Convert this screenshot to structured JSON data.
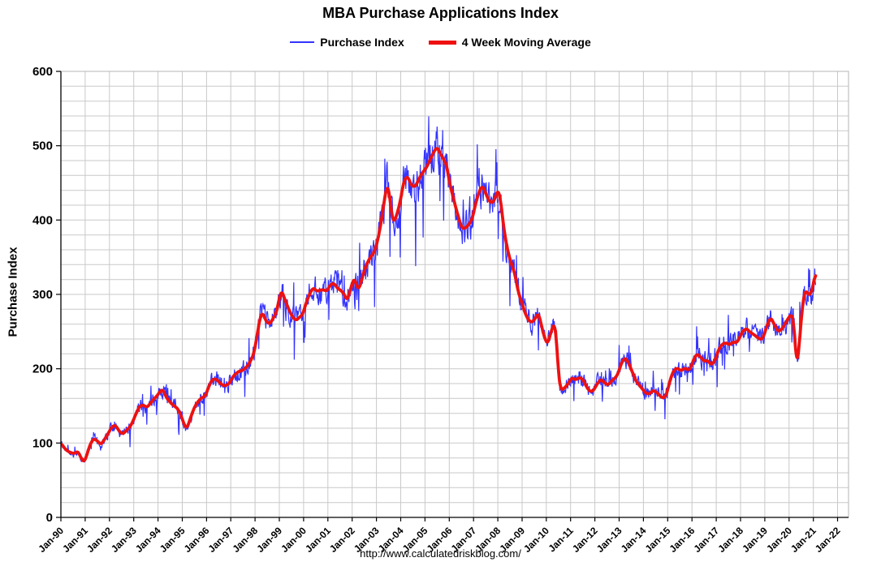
{
  "page": {
    "source_url": "http://www.calculatedriskblog.com/"
  },
  "chart_data": {
    "type": "line",
    "title": "MBA Purchase Applications Index",
    "ylabel": "Purchase Index",
    "xlabel": "",
    "ylim": [
      0,
      600
    ],
    "xlim": [
      1990,
      2022.45
    ],
    "y_major_step": 100,
    "y_minor_step": 20,
    "grid": true,
    "grid_color": "#c9c9c9",
    "legend_position": "top",
    "x_tick_start": 1990,
    "x_tick_labels": [
      "Jan-90",
      "Jan-91",
      "Jan-92",
      "Jan-93",
      "Jan-94",
      "Jan-95",
      "Jan-96",
      "Jan-97",
      "Jan-98",
      "Jan-99",
      "Jan-00",
      "Jan-01",
      "Jan-02",
      "Jan-03",
      "Jan-04",
      "Jan-05",
      "Jan-06",
      "Jan-07",
      "Jan-08",
      "Jan-09",
      "Jan-10",
      "Jan-11",
      "Jan-12",
      "Jan-13",
      "Jan-14",
      "Jan-15",
      "Jan-16",
      "Jan-17",
      "Jan-18",
      "Jan-19",
      "Jan-20",
      "Jan-21",
      "Jan-22"
    ],
    "series": [
      {
        "name": "Purchase Index",
        "color": "#3333ff",
        "line_width": 1.2,
        "derive": "noisy_from_moving_average",
        "noise_seed": 11,
        "noise_base": 0.05,
        "spike_down_prob": 0.035,
        "spike_up_prob": 0.035,
        "spike_size": 0.12
      },
      {
        "name": "4 Week Moving Average",
        "color": "#ee1111",
        "line_width": 3.8,
        "points": [
          [
            1990.0,
            100
          ],
          [
            1990.2,
            91
          ],
          [
            1990.4,
            87
          ],
          [
            1990.55,
            86
          ],
          [
            1990.7,
            89
          ],
          [
            1990.85,
            79
          ],
          [
            1990.95,
            74
          ],
          [
            1991.05,
            82
          ],
          [
            1991.2,
            98
          ],
          [
            1991.35,
            106
          ],
          [
            1991.5,
            103
          ],
          [
            1991.65,
            98
          ],
          [
            1991.8,
            105
          ],
          [
            1991.95,
            113
          ],
          [
            1992.1,
            122
          ],
          [
            1992.25,
            124
          ],
          [
            1992.4,
            116
          ],
          [
            1992.55,
            112
          ],
          [
            1992.7,
            117
          ],
          [
            1992.85,
            122
          ],
          [
            1992.95,
            128
          ],
          [
            1993.1,
            140
          ],
          [
            1993.25,
            150
          ],
          [
            1993.4,
            151
          ],
          [
            1993.55,
            148
          ],
          [
            1993.7,
            154
          ],
          [
            1993.85,
            160
          ],
          [
            1993.95,
            163
          ],
          [
            1994.1,
            170
          ],
          [
            1994.2,
            172
          ],
          [
            1994.35,
            161
          ],
          [
            1994.5,
            155
          ],
          [
            1994.65,
            150
          ],
          [
            1994.8,
            147
          ],
          [
            1994.95,
            137
          ],
          [
            1995.1,
            123
          ],
          [
            1995.2,
            120
          ],
          [
            1995.35,
            135
          ],
          [
            1995.5,
            148
          ],
          [
            1995.65,
            156
          ],
          [
            1995.8,
            161
          ],
          [
            1995.95,
            163
          ],
          [
            1996.1,
            177
          ],
          [
            1996.25,
            186
          ],
          [
            1996.4,
            186
          ],
          [
            1996.55,
            181
          ],
          [
            1996.7,
            177
          ],
          [
            1996.85,
            178
          ],
          [
            1996.95,
            181
          ],
          [
            1997.1,
            190
          ],
          [
            1997.3,
            196
          ],
          [
            1997.5,
            198
          ],
          [
            1997.7,
            204
          ],
          [
            1997.85,
            213
          ],
          [
            1997.95,
            220
          ],
          [
            1998.1,
            248
          ],
          [
            1998.2,
            268
          ],
          [
            1998.3,
            276
          ],
          [
            1998.45,
            264
          ],
          [
            1998.6,
            260
          ],
          [
            1998.75,
            268
          ],
          [
            1998.9,
            278
          ],
          [
            1999.0,
            296
          ],
          [
            1999.1,
            305
          ],
          [
            1999.25,
            291
          ],
          [
            1999.4,
            279
          ],
          [
            1999.55,
            269
          ],
          [
            1999.7,
            265
          ],
          [
            1999.85,
            270
          ],
          [
            1999.95,
            272
          ],
          [
            2000.1,
            288
          ],
          [
            2000.25,
            301
          ],
          [
            2000.4,
            309
          ],
          [
            2000.55,
            304
          ],
          [
            2000.7,
            306
          ],
          [
            2000.85,
            306
          ],
          [
            2000.95,
            304
          ],
          [
            2001.1,
            313
          ],
          [
            2001.25,
            315
          ],
          [
            2001.4,
            308
          ],
          [
            2001.55,
            305
          ],
          [
            2001.7,
            299
          ],
          [
            2001.78,
            291
          ],
          [
            2001.9,
            303
          ],
          [
            2002.0,
            315
          ],
          [
            2002.1,
            322
          ],
          [
            2002.2,
            309
          ],
          [
            2002.3,
            308
          ],
          [
            2002.45,
            327
          ],
          [
            2002.6,
            341
          ],
          [
            2002.75,
            350
          ],
          [
            2002.9,
            356
          ],
          [
            2003.05,
            372
          ],
          [
            2003.2,
            398
          ],
          [
            2003.35,
            432
          ],
          [
            2003.45,
            448
          ],
          [
            2003.55,
            432
          ],
          [
            2003.65,
            402
          ],
          [
            2003.75,
            398
          ],
          [
            2003.9,
            414
          ],
          [
            2004.0,
            428
          ],
          [
            2004.1,
            448
          ],
          [
            2004.2,
            457
          ],
          [
            2004.3,
            458
          ],
          [
            2004.45,
            446
          ],
          [
            2004.6,
            445
          ],
          [
            2004.75,
            455
          ],
          [
            2004.9,
            464
          ],
          [
            2005.05,
            470
          ],
          [
            2005.2,
            480
          ],
          [
            2005.35,
            491
          ],
          [
            2005.5,
            498
          ],
          [
            2005.62,
            490
          ],
          [
            2005.75,
            483
          ],
          [
            2005.9,
            473
          ],
          [
            2006.0,
            452
          ],
          [
            2006.15,
            432
          ],
          [
            2006.3,
            413
          ],
          [
            2006.45,
            396
          ],
          [
            2006.55,
            388
          ],
          [
            2006.7,
            390
          ],
          [
            2006.85,
            396
          ],
          [
            2006.95,
            402
          ],
          [
            2007.1,
            424
          ],
          [
            2007.25,
            440
          ],
          [
            2007.38,
            446
          ],
          [
            2007.5,
            436
          ],
          [
            2007.65,
            425
          ],
          [
            2007.8,
            423
          ],
          [
            2007.95,
            435
          ],
          [
            2008.02,
            441
          ],
          [
            2008.12,
            426
          ],
          [
            2008.25,
            388
          ],
          [
            2008.4,
            360
          ],
          [
            2008.55,
            342
          ],
          [
            2008.7,
            328
          ],
          [
            2008.85,
            302
          ],
          [
            2008.95,
            293
          ],
          [
            2009.1,
            277
          ],
          [
            2009.25,
            266
          ],
          [
            2009.4,
            262
          ],
          [
            2009.55,
            268
          ],
          [
            2009.68,
            275
          ],
          [
            2009.8,
            258
          ],
          [
            2009.92,
            242
          ],
          [
            2010.05,
            233
          ],
          [
            2010.2,
            250
          ],
          [
            2010.33,
            262
          ],
          [
            2010.42,
            240
          ],
          [
            2010.5,
            192
          ],
          [
            2010.6,
            171
          ],
          [
            2010.75,
            174
          ],
          [
            2010.9,
            180
          ],
          [
            2011.05,
            188
          ],
          [
            2011.2,
            185
          ],
          [
            2011.35,
            188
          ],
          [
            2011.5,
            186
          ],
          [
            2011.65,
            176
          ],
          [
            2011.8,
            169
          ],
          [
            2011.95,
            171
          ],
          [
            2012.1,
            180
          ],
          [
            2012.25,
            186
          ],
          [
            2012.4,
            181
          ],
          [
            2012.55,
            178
          ],
          [
            2012.7,
            184
          ],
          [
            2012.85,
            188
          ],
          [
            2012.95,
            193
          ],
          [
            2013.1,
            208
          ],
          [
            2013.25,
            215
          ],
          [
            2013.4,
            207
          ],
          [
            2013.55,
            195
          ],
          [
            2013.7,
            183
          ],
          [
            2013.85,
            177
          ],
          [
            2013.95,
            173
          ],
          [
            2014.1,
            167
          ],
          [
            2014.25,
            166
          ],
          [
            2014.4,
            171
          ],
          [
            2014.55,
            168
          ],
          [
            2014.7,
            163
          ],
          [
            2014.82,
            160
          ],
          [
            2014.95,
            165
          ],
          [
            2015.1,
            185
          ],
          [
            2015.25,
            198
          ],
          [
            2015.4,
            201
          ],
          [
            2015.55,
            197
          ],
          [
            2015.7,
            201
          ],
          [
            2015.85,
            198
          ],
          [
            2015.95,
            201
          ],
          [
            2016.05,
            211
          ],
          [
            2016.2,
            220
          ],
          [
            2016.35,
            216
          ],
          [
            2016.5,
            210
          ],
          [
            2016.65,
            211
          ],
          [
            2016.8,
            205
          ],
          [
            2016.95,
            211
          ],
          [
            2017.1,
            226
          ],
          [
            2017.25,
            233
          ],
          [
            2017.4,
            235
          ],
          [
            2017.55,
            232
          ],
          [
            2017.7,
            236
          ],
          [
            2017.85,
            235
          ],
          [
            2017.95,
            241
          ],
          [
            2018.1,
            251
          ],
          [
            2018.25,
            254
          ],
          [
            2018.4,
            249
          ],
          [
            2018.55,
            246
          ],
          [
            2018.7,
            242
          ],
          [
            2018.85,
            239
          ],
          [
            2018.95,
            243
          ],
          [
            2019.1,
            259
          ],
          [
            2019.25,
            269
          ],
          [
            2019.4,
            259
          ],
          [
            2019.55,
            250
          ],
          [
            2019.7,
            253
          ],
          [
            2019.85,
            261
          ],
          [
            2019.95,
            267
          ],
          [
            2020.08,
            273
          ],
          [
            2020.18,
            267
          ],
          [
            2020.26,
            230
          ],
          [
            2020.32,
            204
          ],
          [
            2020.4,
            224
          ],
          [
            2020.5,
            266
          ],
          [
            2020.6,
            297
          ],
          [
            2020.7,
            306
          ],
          [
            2020.8,
            299
          ],
          [
            2020.9,
            301
          ],
          [
            2021.0,
            313
          ],
          [
            2021.05,
            324
          ],
          [
            2021.1,
            328
          ]
        ]
      }
    ]
  }
}
